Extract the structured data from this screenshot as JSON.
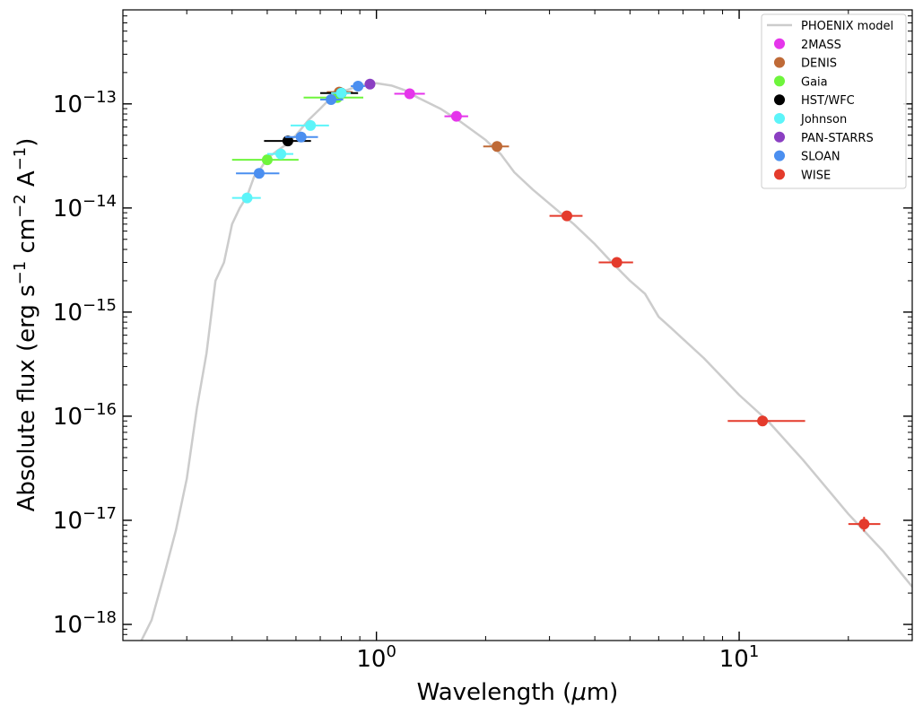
{
  "chart_data": {
    "type": "scatter",
    "title": "",
    "xlabel": "Wavelength (μm)",
    "xlabel_parts": {
      "pre": "Wavelength (",
      "mu": "μ",
      "post": "m)"
    },
    "ylabel": "Absolute flux (erg s−1 cm−2 A−1)",
    "ylabel_parts": {
      "pre": "Absolute flux (erg s",
      "sup1": "−1",
      "mid1": " cm",
      "sup2": "−2",
      "mid2": " A",
      "sup3": "−1",
      "post": ")"
    },
    "xscale": "log",
    "yscale": "log",
    "xlim": [
      0.2,
      30
    ],
    "ylim": [
      7e-19,
      8e-13
    ],
    "xticks": [
      {
        "value": 1,
        "base": "10",
        "exp": "0"
      },
      {
        "value": 10,
        "base": "10",
        "exp": "1"
      }
    ],
    "yticks": [
      {
        "value": 1e-18,
        "base": "10",
        "exp": "−18"
      },
      {
        "value": 1e-17,
        "base": "10",
        "exp": "−17"
      },
      {
        "value": 1e-16,
        "base": "10",
        "exp": "−16"
      },
      {
        "value": 1e-15,
        "base": "10",
        "exp": "−15"
      },
      {
        "value": 1e-14,
        "base": "10",
        "exp": "−14"
      },
      {
        "value": 1e-13,
        "base": "10",
        "exp": "−13"
      }
    ],
    "legend_position": "top-right",
    "model": {
      "name": "PHOENIX model",
      "color": "#cccccc",
      "x": [
        0.22,
        0.24,
        0.26,
        0.28,
        0.3,
        0.32,
        0.34,
        0.36,
        0.38,
        0.4,
        0.42,
        0.44,
        0.46,
        0.48,
        0.5,
        0.53,
        0.56,
        0.6,
        0.65,
        0.7,
        0.75,
        0.8,
        0.85,
        0.9,
        0.95,
        1.0,
        1.1,
        1.2,
        1.3,
        1.5,
        1.7,
        2.0,
        2.2,
        2.4,
        2.7,
        3.0,
        3.5,
        4.0,
        4.5,
        5.0,
        5.5,
        6.0,
        6.5,
        8.0,
        10.0,
        12.0,
        15.0,
        20.0,
        25.0,
        30.0
      ],
      "y": [
        6e-19,
        1.1e-18,
        3e-18,
        8e-18,
        2.5e-17,
        1.2e-16,
        4e-16,
        2e-15,
        3e-15,
        7e-15,
        1e-14,
        1.3e-14,
        2e-14,
        2.4e-14,
        3e-14,
        3.5e-14,
        4e-14,
        5e-14,
        7e-14,
        9e-14,
        1.15e-13,
        1.3e-13,
        1.4e-13,
        1.5e-13,
        1.55e-13,
        1.58e-13,
        1.5e-13,
        1.35e-13,
        1.15e-13,
        9e-14,
        6.8e-14,
        4.5e-14,
        3.3e-14,
        2.2e-14,
        1.5e-14,
        1.1e-14,
        7e-15,
        4.5e-15,
        2.9e-15,
        2e-15,
        1.5e-15,
        9e-16,
        7e-16,
        3.6e-16,
        1.6e-16,
        9e-17,
        3.8e-17,
        1.15e-17,
        5e-18,
        2.3e-18
      ]
    },
    "series": [
      {
        "name": "2MASS",
        "color": "#e535eb",
        "points": [
          {
            "x": 1.235,
            "y": 1.25e-13,
            "xerr": [
              1.12,
              1.36
            ]
          },
          {
            "x": 1.662,
            "y": 7.6e-14,
            "xerr": [
              1.54,
              1.79
            ]
          }
        ]
      },
      {
        "name": "DENIS",
        "color": "#bf6a37",
        "points": [
          {
            "x": 0.79,
            "y": 1.3e-13,
            "xerr": [
              0.73,
              0.86
            ]
          },
          {
            "x": 2.15,
            "y": 3.9e-14,
            "xerr": [
              1.97,
              2.32
            ]
          }
        ]
      },
      {
        "name": "Gaia",
        "color": "#6ef53c",
        "points": [
          {
            "x": 0.5,
            "y": 2.9e-14,
            "xerr": [
              0.4,
              0.61
            ]
          },
          {
            "x": 0.78,
            "y": 1.15e-13,
            "xerr": [
              0.63,
              0.92
            ]
          }
        ]
      },
      {
        "name": "HST/WFC",
        "color": "#000000",
        "points": [
          {
            "x": 0.57,
            "y": 4.4e-14,
            "xerr": [
              0.49,
              0.66
            ]
          },
          {
            "x": 0.8,
            "y": 1.27e-13,
            "xerr": [
              0.7,
              0.89
            ]
          }
        ]
      },
      {
        "name": "Johnson",
        "color": "#5cf4f9",
        "points": [
          {
            "x": 0.44,
            "y": 1.25e-14,
            "xerr": [
              0.4,
              0.48
            ]
          },
          {
            "x": 0.545,
            "y": 3.3e-14,
            "xerr": [
              0.5,
              0.59
            ]
          },
          {
            "x": 0.658,
            "y": 6.2e-14,
            "xerr": [
              0.58,
              0.74
            ]
          },
          {
            "x": 0.8,
            "y": 1.27e-13,
            "xerr": [
              0.75,
              0.85
            ]
          }
        ]
      },
      {
        "name": "PAN-STARRS",
        "color": "#8b3fc2",
        "points": [
          {
            "x": 0.96,
            "y": 1.55e-13,
            "xerr": [
              0.93,
              0.99
            ]
          }
        ]
      },
      {
        "name": "SLOAN",
        "color": "#4b8ff0",
        "points": [
          {
            "x": 0.475,
            "y": 2.15e-14,
            "xerr": [
              0.41,
              0.54
            ]
          },
          {
            "x": 0.62,
            "y": 4.8e-14,
            "xerr": [
              0.56,
              0.69
            ]
          },
          {
            "x": 0.75,
            "y": 1.1e-13,
            "xerr": [
              0.7,
              0.81
            ]
          },
          {
            "x": 0.89,
            "y": 1.48e-13,
            "xerr": [
              0.85,
              0.93
            ]
          }
        ]
      },
      {
        "name": "WISE",
        "color": "#e43b2c",
        "points": [
          {
            "x": 3.35,
            "y": 8.4e-15,
            "xerr": [
              3.0,
              3.7
            ]
          },
          {
            "x": 4.6,
            "y": 3e-15,
            "xerr": [
              4.1,
              5.1
            ]
          },
          {
            "x": 11.6,
            "y": 9e-17,
            "xerr": [
              9.3,
              15.2
            ]
          },
          {
            "x": 22.1,
            "y": 9.2e-18,
            "xerr": [
              20.0,
              24.5
            ],
            "yerr": [
              7.8e-18,
              1.08e-17
            ]
          }
        ]
      }
    ]
  }
}
